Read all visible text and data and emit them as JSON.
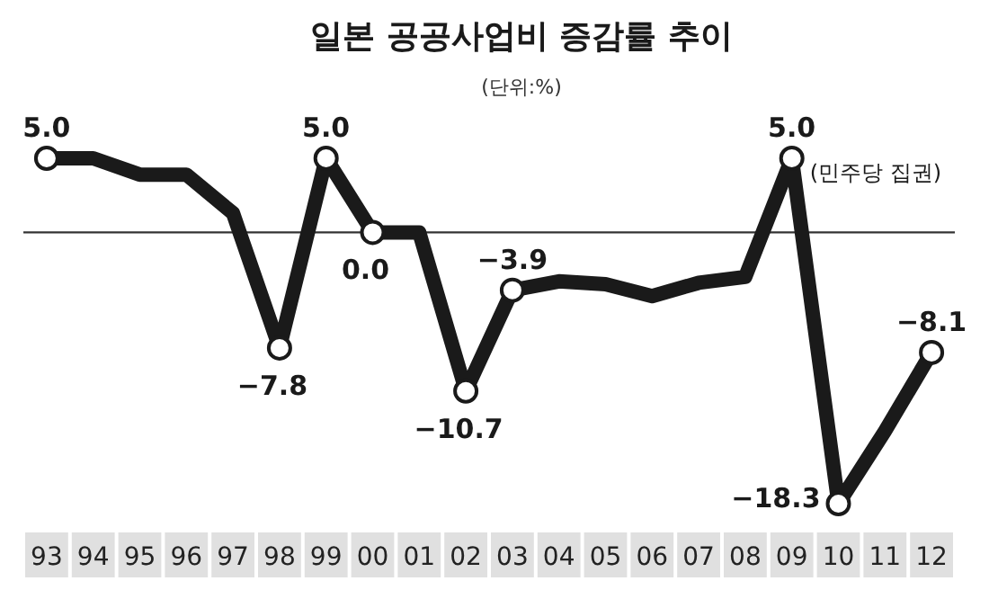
{
  "chart_data": {
    "type": "line",
    "title": "일본 공공사업비 증감률 추이",
    "subtitle": "(단위:%)",
    "categories": [
      "93",
      "94",
      "95",
      "96",
      "97",
      "98",
      "99",
      "00",
      "01",
      "02",
      "03",
      "04",
      "05",
      "06",
      "07",
      "08",
      "09",
      "10",
      "11",
      "12"
    ],
    "series": [
      {
        "color": "#1a1a1a",
        "values": [
          5.0,
          5.0,
          3.9,
          3.9,
          1.3,
          -7.8,
          5.0,
          0.0,
          0.0,
          -10.7,
          -3.9,
          -3.3,
          -3.5,
          -4.3,
          -3.4,
          -3.0,
          5.0,
          -18.3,
          -13.4,
          -8.1
        ],
        "value_labels": [
          "5.0",
          null,
          null,
          null,
          null,
          "−7.8",
          "5.0",
          "0.0",
          null,
          "−10.7",
          "−3.9",
          null,
          null,
          null,
          null,
          null,
          "5.0",
          "−18.3",
          null,
          "−8.1"
        ]
      }
    ],
    "ref_lines": [
      {
        "axis": "y",
        "value": 0,
        "color": "#333333"
      }
    ],
    "annotations": [
      {
        "text": "(민주당 집권)",
        "x": "09",
        "y": 5.0
      }
    ],
    "line_style": "solid"
  }
}
